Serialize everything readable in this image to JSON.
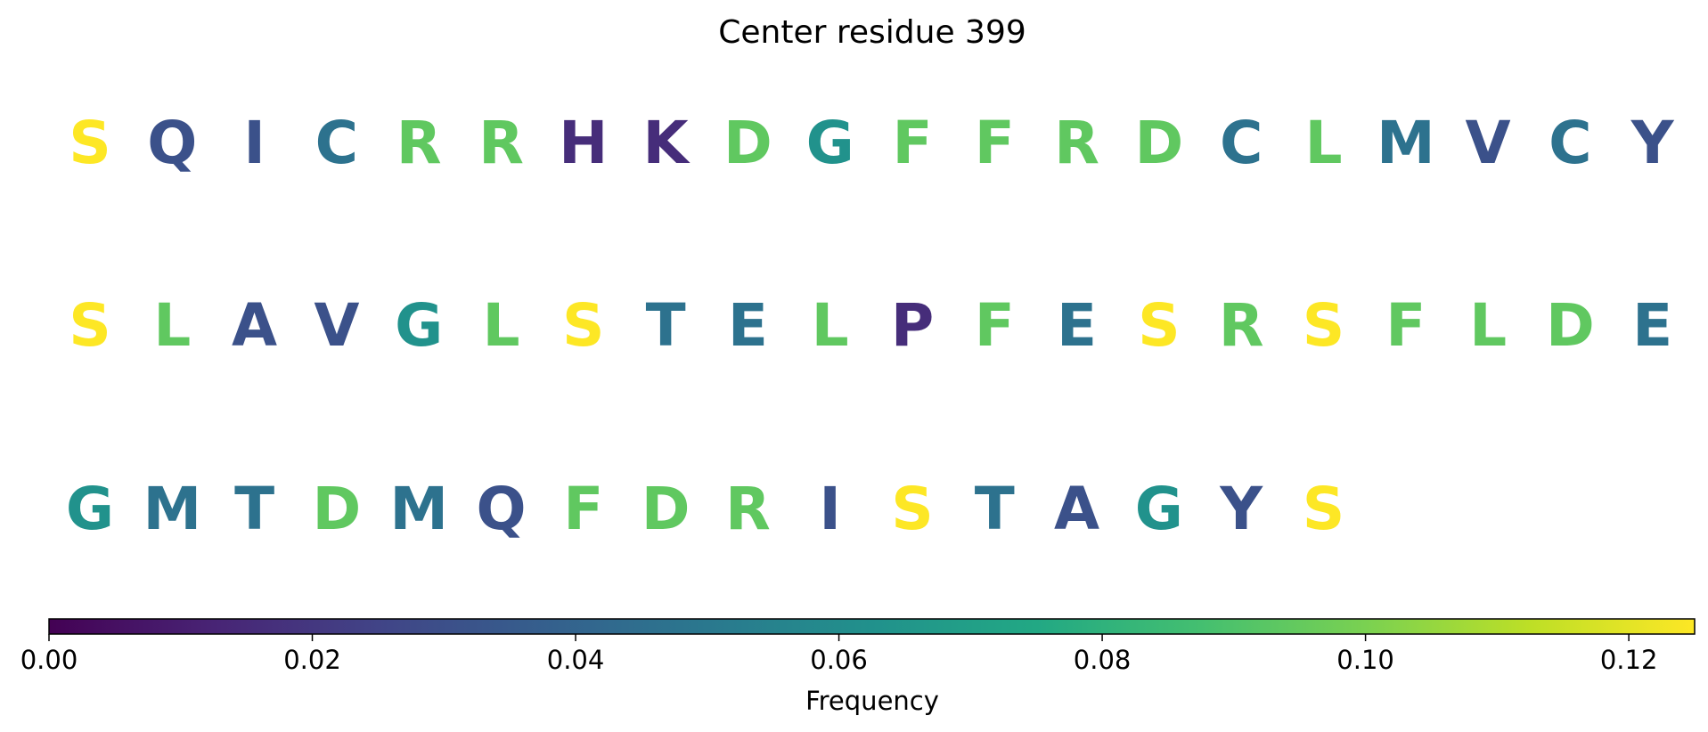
{
  "chart_data": {
    "type": "heatmap",
    "title": "Center residue 399",
    "colormap": "viridis",
    "colorbar": {
      "label": "Frequency",
      "range": [
        0,
        0.125
      ],
      "ticks": [
        "0.00",
        "0.02",
        "0.04",
        "0.06",
        "0.08",
        "0.10",
        "0.12"
      ],
      "tick_values": [
        0,
        0.02,
        0.04,
        0.06,
        0.08,
        0.1,
        0.12
      ],
      "orientation": "horizontal",
      "placement": "bottom"
    },
    "rows": [
      [
        {
          "letter": "S",
          "value": 0.125
        },
        {
          "letter": "Q",
          "value": 0.031
        },
        {
          "letter": "I",
          "value": 0.031
        },
        {
          "letter": "C",
          "value": 0.047
        },
        {
          "letter": "R",
          "value": 0.094
        },
        {
          "letter": "R",
          "value": 0.094
        },
        {
          "letter": "H",
          "value": 0.016
        },
        {
          "letter": "K",
          "value": 0.016
        },
        {
          "letter": "D",
          "value": 0.094
        },
        {
          "letter": "G",
          "value": 0.063
        },
        {
          "letter": "F",
          "value": 0.094
        },
        {
          "letter": "F",
          "value": 0.094
        },
        {
          "letter": "R",
          "value": 0.094
        },
        {
          "letter": "D",
          "value": 0.094
        },
        {
          "letter": "C",
          "value": 0.047
        },
        {
          "letter": "L",
          "value": 0.094
        },
        {
          "letter": "M",
          "value": 0.047
        },
        {
          "letter": "V",
          "value": 0.031
        },
        {
          "letter": "C",
          "value": 0.047
        },
        {
          "letter": "Y",
          "value": 0.031
        }
      ],
      [
        {
          "letter": "S",
          "value": 0.125
        },
        {
          "letter": "L",
          "value": 0.094
        },
        {
          "letter": "A",
          "value": 0.031
        },
        {
          "letter": "V",
          "value": 0.031
        },
        {
          "letter": "G",
          "value": 0.063
        },
        {
          "letter": "L",
          "value": 0.094
        },
        {
          "letter": "S",
          "value": 0.125
        },
        {
          "letter": "T",
          "value": 0.047
        },
        {
          "letter": "E",
          "value": 0.047
        },
        {
          "letter": "L",
          "value": 0.094
        },
        {
          "letter": "P",
          "value": 0.016
        },
        {
          "letter": "F",
          "value": 0.094
        },
        {
          "letter": "E",
          "value": 0.047
        },
        {
          "letter": "S",
          "value": 0.125
        },
        {
          "letter": "R",
          "value": 0.094
        },
        {
          "letter": "S",
          "value": 0.125
        },
        {
          "letter": "F",
          "value": 0.094
        },
        {
          "letter": "L",
          "value": 0.094
        },
        {
          "letter": "D",
          "value": 0.094
        },
        {
          "letter": "E",
          "value": 0.047
        }
      ],
      [
        {
          "letter": "G",
          "value": 0.063
        },
        {
          "letter": "M",
          "value": 0.047
        },
        {
          "letter": "T",
          "value": 0.047
        },
        {
          "letter": "D",
          "value": 0.094
        },
        {
          "letter": "M",
          "value": 0.047
        },
        {
          "letter": "Q",
          "value": 0.031
        },
        {
          "letter": "F",
          "value": 0.094
        },
        {
          "letter": "D",
          "value": 0.094
        },
        {
          "letter": "R",
          "value": 0.094
        },
        {
          "letter": "I",
          "value": 0.031
        },
        {
          "letter": "S",
          "value": 0.125
        },
        {
          "letter": "T",
          "value": 0.047
        },
        {
          "letter": "A",
          "value": 0.031
        },
        {
          "letter": "G",
          "value": 0.063
        },
        {
          "letter": "Y",
          "value": 0.031
        },
        {
          "letter": "S",
          "value": 0.125
        }
      ]
    ]
  }
}
